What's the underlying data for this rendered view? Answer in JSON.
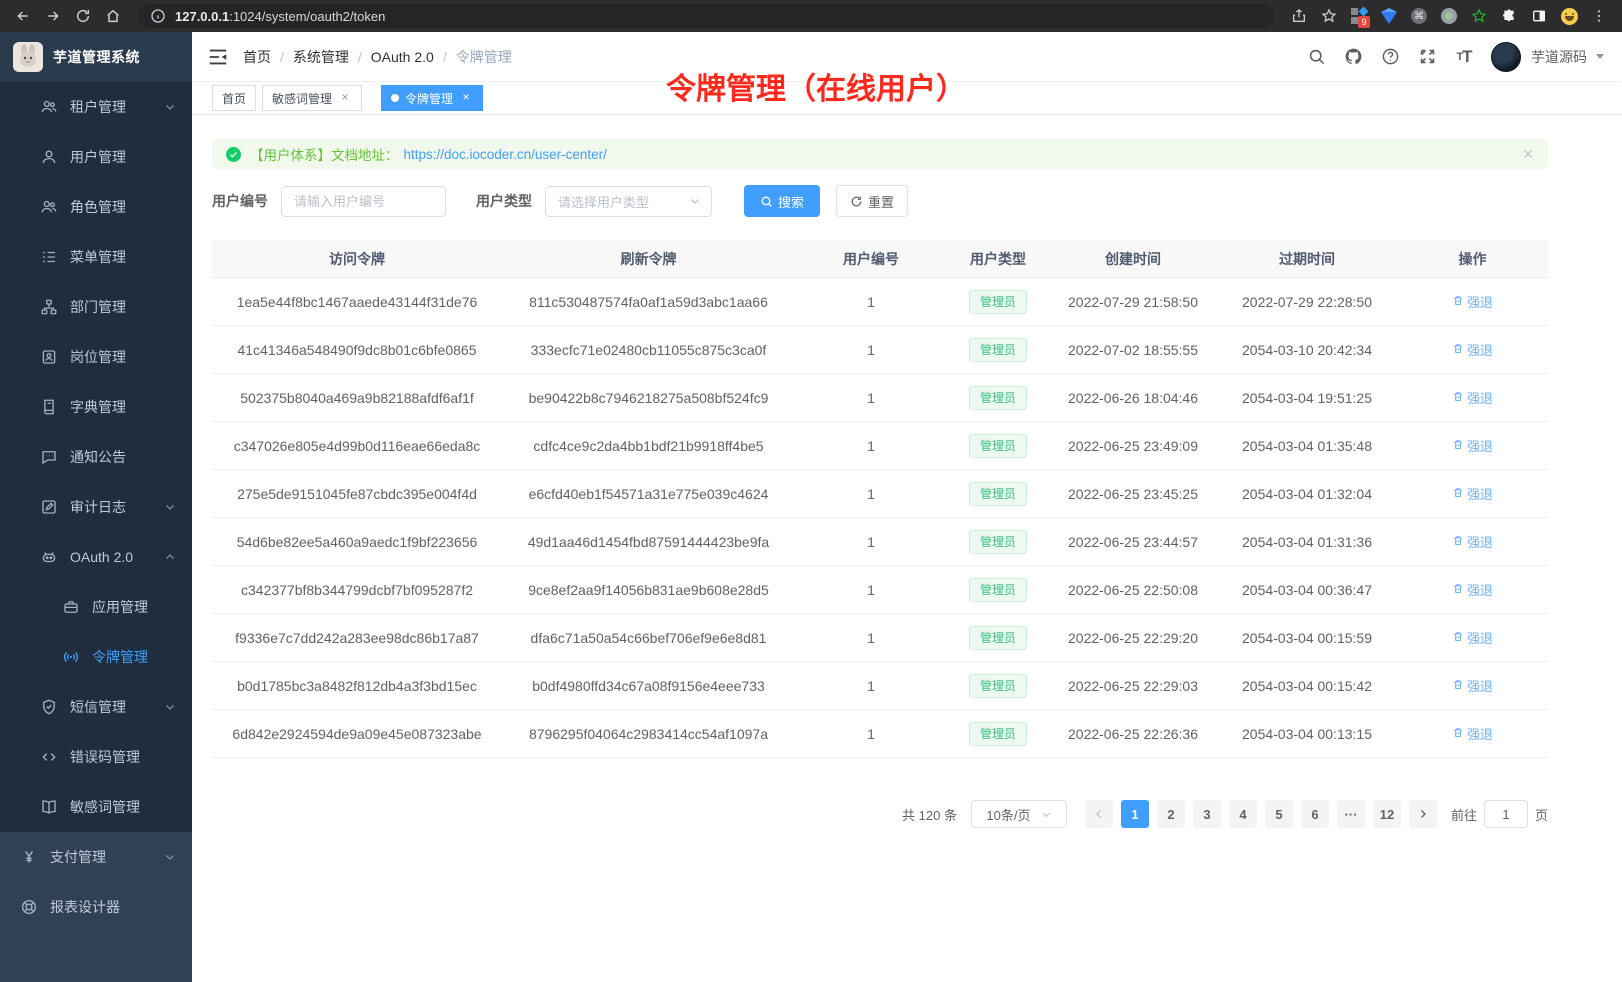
{
  "browser": {
    "url_host": "127.0.0.1",
    "url_rest": ":1024/system/oauth2/token",
    "extension_badge": "9"
  },
  "app": {
    "title": "芋道管理系统"
  },
  "sidebar": {
    "sections": [
      {
        "name": "system-submenu",
        "items": [
          {
            "key": "tenant",
            "label": "租户管理",
            "icon": "users-icon",
            "level": "child",
            "chevron": "down"
          },
          {
            "key": "user",
            "label": "用户管理",
            "icon": "user-icon",
            "level": "child"
          },
          {
            "key": "role",
            "label": "角色管理",
            "icon": "users-icon",
            "level": "child"
          },
          {
            "key": "menu",
            "label": "菜单管理",
            "icon": "menu-icon",
            "level": "child"
          },
          {
            "key": "dept",
            "label": "部门管理",
            "icon": "dept-icon",
            "level": "child"
          },
          {
            "key": "post",
            "label": "岗位管理",
            "icon": "post-icon",
            "level": "child"
          },
          {
            "key": "dict",
            "label": "字典管理",
            "icon": "dict-icon",
            "level": "child"
          },
          {
            "key": "notice",
            "label": "通知公告",
            "icon": "notice-icon",
            "level": "child"
          },
          {
            "key": "audit",
            "label": "审计日志",
            "icon": "audit-icon",
            "level": "child",
            "chevron": "down"
          },
          {
            "key": "oauth2",
            "label": "OAuth 2.0",
            "icon": "oauth-icon",
            "level": "child",
            "chevron": "up"
          },
          {
            "key": "oauth2-app",
            "label": "应用管理",
            "icon": "app-icon",
            "level": "grandchild"
          },
          {
            "key": "oauth2-token",
            "label": "令牌管理",
            "icon": "token-icon",
            "level": "grandchild",
            "active": true
          },
          {
            "key": "sms",
            "label": "短信管理",
            "icon": "sms-icon",
            "level": "child",
            "chevron": "down"
          },
          {
            "key": "errcode",
            "label": "错误码管理",
            "icon": "errcode-icon",
            "level": "child"
          },
          {
            "key": "sensitive",
            "label": "敏感词管理",
            "icon": "sensitive-icon",
            "level": "child"
          }
        ]
      },
      {
        "name": "root",
        "items": [
          {
            "key": "pay",
            "label": "支付管理",
            "icon": "pay-icon",
            "level": "root",
            "chevron": "down"
          },
          {
            "key": "report",
            "label": "报表设计器",
            "icon": "report-icon",
            "level": "root"
          }
        ]
      }
    ]
  },
  "navbar": {
    "breadcrumb": [
      "首页",
      "系统管理",
      "OAuth 2.0",
      "令牌管理"
    ],
    "user_name": "芋道源码"
  },
  "tags": [
    {
      "label": "首页",
      "active": false,
      "closable": false
    },
    {
      "label": "敏感词管理",
      "active": false,
      "closable": true
    },
    {
      "label": "令牌管理",
      "active": true,
      "closable": true
    }
  ],
  "annotation": "令牌管理（在线用户）",
  "alert": {
    "text": "【用户体系】文档地址：",
    "link": "https://doc.iocoder.cn/user-center/"
  },
  "filters": {
    "user_id_label": "用户编号",
    "user_id_placeholder": "请输入用户编号",
    "user_type_label": "用户类型",
    "user_type_placeholder": "请选择用户类型",
    "search_label": "搜索",
    "reset_label": "重置"
  },
  "table": {
    "headers": [
      "访问令牌",
      "刷新令牌",
      "用户编号",
      "用户类型",
      "创建时间",
      "过期时间",
      "操作"
    ],
    "action_label": "强退",
    "rows": [
      {
        "access": "1ea5e44f8bc1467aaede43144f31de76",
        "refresh": "811c530487574fa0af1a59d3abc1aa66",
        "user_id": "1",
        "user_type": "管理员",
        "created": "2022-07-29 21:58:50",
        "expires": "2022-07-29 22:28:50"
      },
      {
        "access": "41c41346a548490f9dc8b01c6bfe0865",
        "refresh": "333ecfc71e02480cb11055c875c3ca0f",
        "user_id": "1",
        "user_type": "管理员",
        "created": "2022-07-02 18:55:55",
        "expires": "2054-03-10 20:42:34"
      },
      {
        "access": "502375b8040a469a9b82188afdf6af1f",
        "refresh": "be90422b8c7946218275a508bf524fc9",
        "user_id": "1",
        "user_type": "管理员",
        "created": "2022-06-26 18:04:46",
        "expires": "2054-03-04 19:51:25"
      },
      {
        "access": "c347026e805e4d99b0d116eae66eda8c",
        "refresh": "cdfc4ce9c2da4bb1bdf21b9918ff4be5",
        "user_id": "1",
        "user_type": "管理员",
        "created": "2022-06-25 23:49:09",
        "expires": "2054-03-04 01:35:48"
      },
      {
        "access": "275e5de9151045fe87cbdc395e004f4d",
        "refresh": "e6cfd40eb1f54571a31e775e039c4624",
        "user_id": "1",
        "user_type": "管理员",
        "created": "2022-06-25 23:45:25",
        "expires": "2054-03-04 01:32:04"
      },
      {
        "access": "54d6be82ee5a460a9aedc1f9bf223656",
        "refresh": "49d1aa46d1454fbd87591444423be9fa",
        "user_id": "1",
        "user_type": "管理员",
        "created": "2022-06-25 23:44:57",
        "expires": "2054-03-04 01:31:36"
      },
      {
        "access": "c342377bf8b344799dcbf7bf095287f2",
        "refresh": "9ce8ef2aa9f14056b831ae9b608e28d5",
        "user_id": "1",
        "user_type": "管理员",
        "created": "2022-06-25 22:50:08",
        "expires": "2054-03-04 00:36:47"
      },
      {
        "access": "f9336e7c7dd242a283ee98dc86b17a87",
        "refresh": "dfa6c71a50a54c66bef706ef9e6e8d81",
        "user_id": "1",
        "user_type": "管理员",
        "created": "2022-06-25 22:29:20",
        "expires": "2054-03-04 00:15:59"
      },
      {
        "access": "b0d1785bc3a8482f812db4a3f3bd15ec",
        "refresh": "b0df4980ffd34c67a08f9156e4eee733",
        "user_id": "1",
        "user_type": "管理员",
        "created": "2022-06-25 22:29:03",
        "expires": "2054-03-04 00:15:42"
      },
      {
        "access": "6d842e2924594de9a09e45e087323abe",
        "refresh": "8796295f04064c2983414cc54af1097a",
        "user_id": "1",
        "user_type": "管理员",
        "created": "2022-06-25 22:26:36",
        "expires": "2054-03-04 00:13:15"
      }
    ]
  },
  "pagination": {
    "total_label": "共 120 条",
    "page_size": "10条/页",
    "pages": [
      "1",
      "2",
      "3",
      "4",
      "5",
      "6",
      "···",
      "12"
    ],
    "active_page": "1",
    "goto_label": "前往",
    "goto_value": "1",
    "goto_unit": "页"
  },
  "colors": {
    "accent": "#409eff",
    "success": "#13ce66",
    "success_text": "#67c23a",
    "annotation_red": "#fb2a1c",
    "sidebar_dark": "#1f2d3d",
    "sidebar_light": "#304156"
  }
}
